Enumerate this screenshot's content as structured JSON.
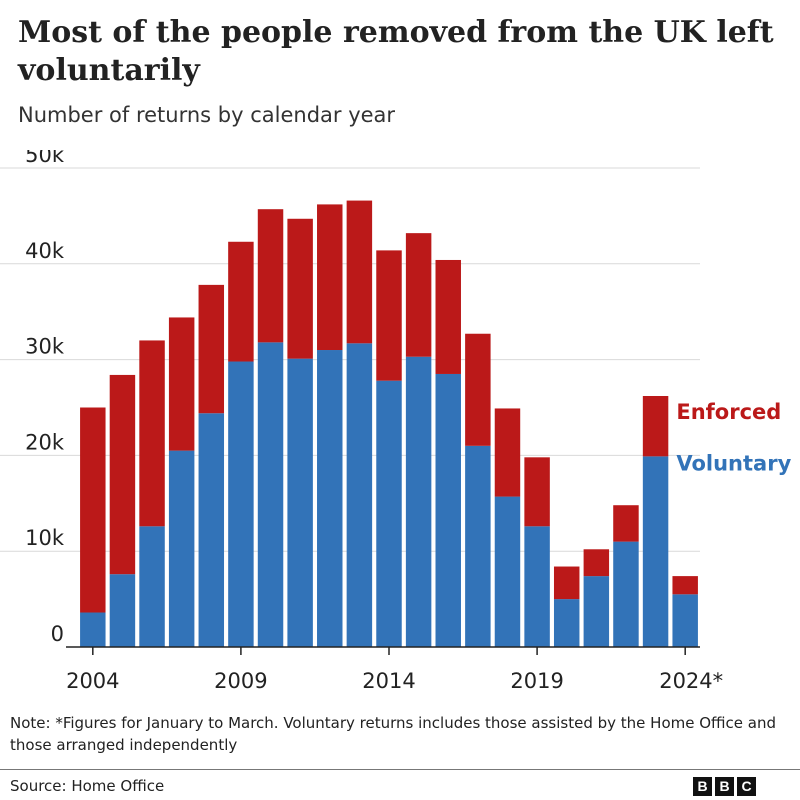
{
  "title": "Most of the people removed from the UK left voluntarily",
  "subtitle": "Number of returns by calendar year",
  "note": "Note: *Figures for January to March. Voluntary returns includes those assisted by the Home Office and those arranged independently",
  "source": "Source: Home Office",
  "logo": {
    "letters": [
      "B",
      "B",
      "C"
    ]
  },
  "colors": {
    "voluntary": "#3273b8",
    "enforced": "#bb1919",
    "grid": "#d9d9d9",
    "axis": "#222222"
  },
  "chart_data": {
    "type": "bar",
    "stacked": true,
    "categories": [
      "2004",
      "2005",
      "2006",
      "2007",
      "2008",
      "2009",
      "2010",
      "2011",
      "2012",
      "2013",
      "2014",
      "2015",
      "2016",
      "2017",
      "2018",
      "2019",
      "2020",
      "2021",
      "2022",
      "2023",
      "2024*"
    ],
    "x_tick_labels": [
      "2004",
      "2009",
      "2014",
      "2019",
      "2024*"
    ],
    "y_ticks": [
      0,
      10000,
      20000,
      30000,
      40000,
      50000
    ],
    "y_tick_labels": [
      "0",
      "10k",
      "20k",
      "30k",
      "40k",
      "50k"
    ],
    "ylim": [
      0,
      50000
    ],
    "grid": true,
    "legend_position": "inline-right",
    "series": [
      {
        "name": "Voluntary",
        "color": "#3273b8",
        "values": [
          3600,
          7600,
          12600,
          20500,
          24400,
          29800,
          31800,
          30100,
          31000,
          31700,
          27800,
          30300,
          28500,
          21000,
          15700,
          12600,
          5000,
          7400,
          11000,
          19900,
          5500
        ]
      },
      {
        "name": "Enforced",
        "color": "#bb1919",
        "values": [
          21400,
          20800,
          19400,
          13900,
          13400,
          12500,
          13900,
          14600,
          15200,
          14900,
          13600,
          12900,
          11900,
          11700,
          9200,
          7200,
          3400,
          2800,
          3800,
          6300,
          1900
        ]
      }
    ]
  }
}
